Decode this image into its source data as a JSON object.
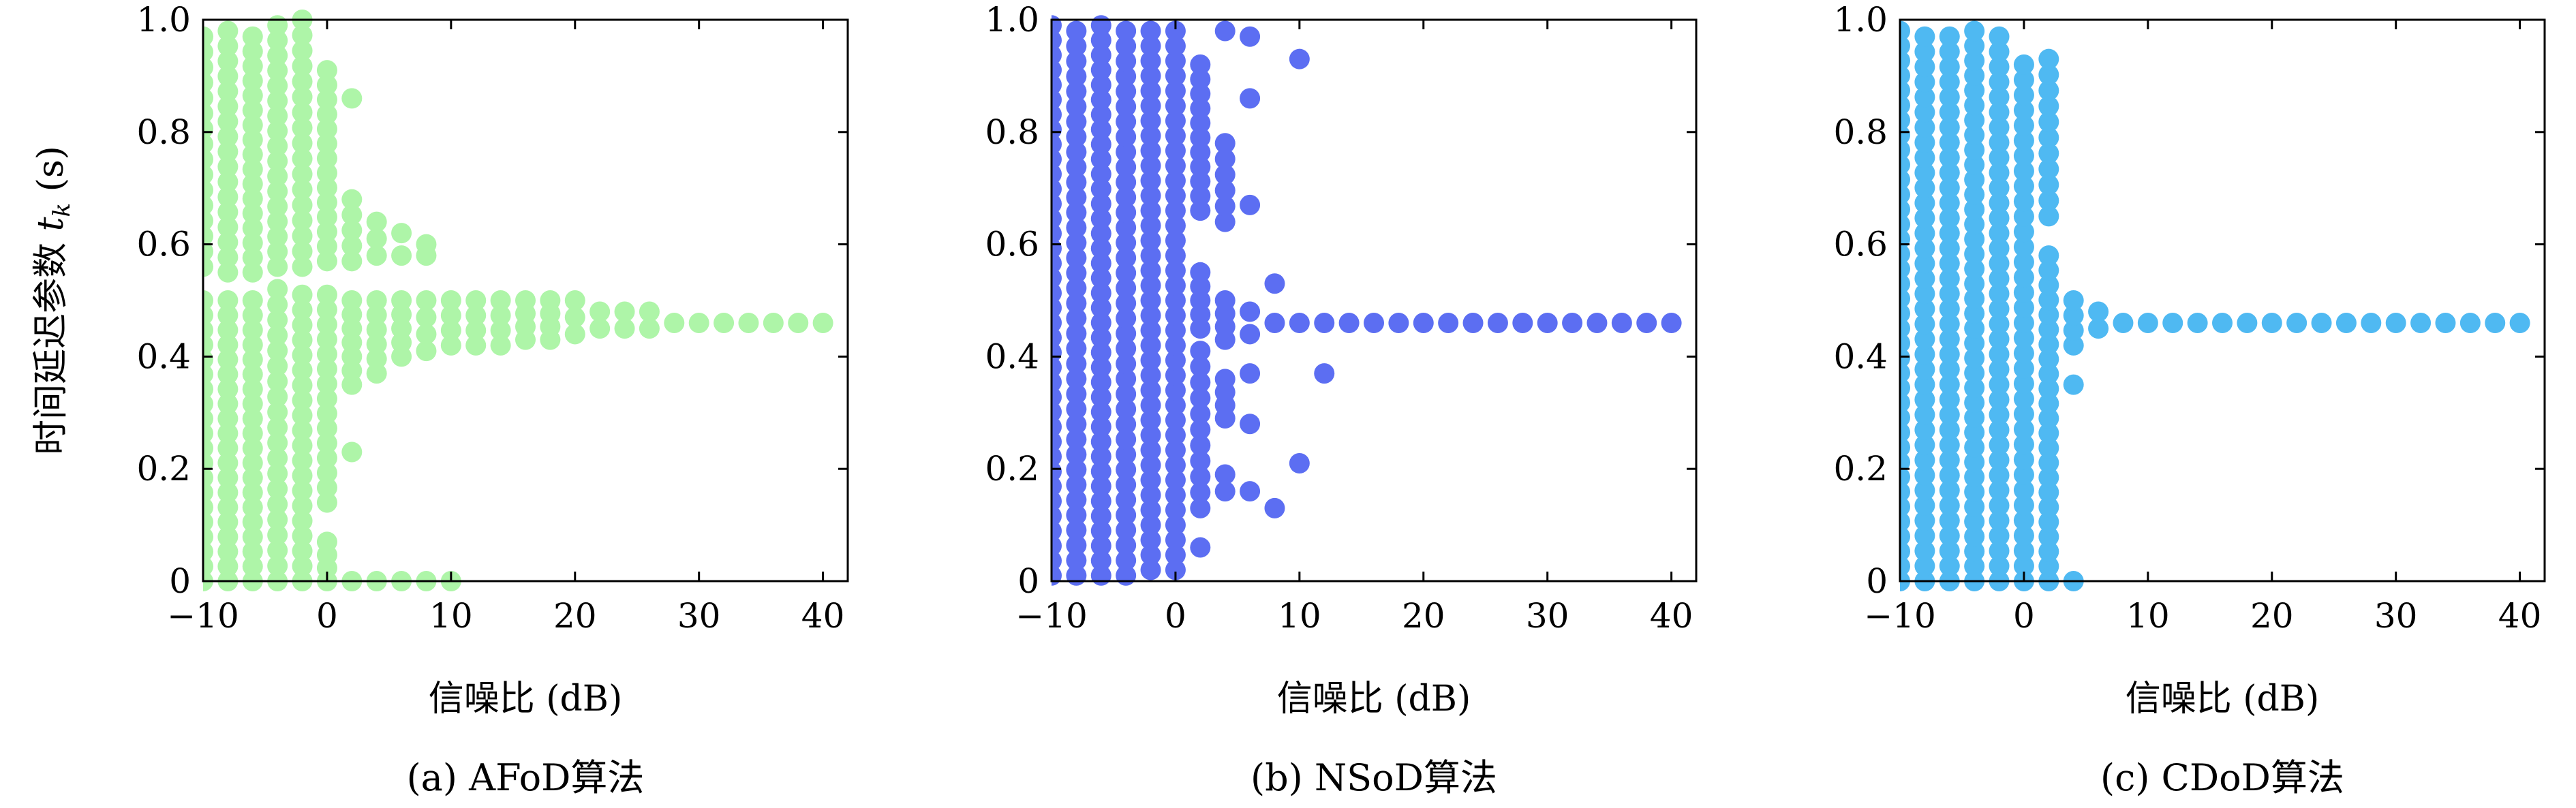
{
  "figure": {
    "y_axis_title": "时间延迟参数 t_k (s)"
  },
  "chart_data": [
    {
      "type": "scatter",
      "caption": "(a) AFoD算法",
      "xlabel": "信噪比 (dB)",
      "ylabel": "时间延迟参数 t_k (s)",
      "xlim": [
        -10,
        42
      ],
      "ylim": [
        0,
        1
      ],
      "xticks": [
        -10,
        0,
        10,
        20,
        30,
        40
      ],
      "xtick_labels": [
        "−10",
        "0",
        "10",
        "20",
        "30",
        "40"
      ],
      "yticks": [
        0,
        0.2,
        0.4,
        0.6,
        0.8,
        1.0
      ],
      "ytick_labels": [
        "0",
        "0.2",
        "0.4",
        "0.6",
        "0.8",
        "1.0"
      ],
      "grid": false,
      "color": "#aef5a8",
      "snr": [
        -10,
        -8,
        -6,
        -4,
        -2,
        0,
        2,
        4,
        6,
        8,
        10,
        12,
        14,
        16,
        18,
        20,
        22,
        24,
        26,
        28,
        30,
        32,
        34,
        36,
        38,
        40
      ],
      "columns": [
        {
          "x": -10,
          "ranges": [
            [
              0.0,
              0.5
            ],
            [
              0.56,
              0.97
            ]
          ]
        },
        {
          "x": -8,
          "ranges": [
            [
              0.0,
              0.5
            ],
            [
              0.55,
              0.98
            ]
          ]
        },
        {
          "x": -6,
          "ranges": [
            [
              0.0,
              0.5
            ],
            [
              0.55,
              0.97
            ]
          ]
        },
        {
          "x": -4,
          "ranges": [
            [
              0.0,
              0.52
            ],
            [
              0.56,
              0.99
            ]
          ]
        },
        {
          "x": -2,
          "ranges": [
            [
              0.0,
              0.51
            ],
            [
              0.56,
              1.0
            ]
          ]
        },
        {
          "x": 0,
          "ranges": [
            [
              0.0,
              0.07
            ],
            [
              0.14,
              0.51
            ],
            [
              0.57,
              0.91
            ]
          ]
        },
        {
          "x": 2,
          "ranges": [
            [
              0.0,
              0.0
            ],
            [
              0.23,
              0.24
            ],
            [
              0.35,
              0.5
            ],
            [
              0.57,
              0.68
            ],
            [
              0.86,
              0.86
            ]
          ]
        },
        {
          "x": 4,
          "ranges": [
            [
              0.0,
              0.0
            ],
            [
              0.37,
              0.5
            ],
            [
              0.58,
              0.64
            ]
          ]
        },
        {
          "x": 6,
          "ranges": [
            [
              0.0,
              0.0
            ],
            [
              0.4,
              0.5
            ],
            [
              0.58,
              0.62
            ]
          ]
        },
        {
          "x": 8,
          "ranges": [
            [
              0.0,
              0.0
            ],
            [
              0.41,
              0.5
            ],
            [
              0.58,
              0.6
            ]
          ]
        },
        {
          "x": 10,
          "ranges": [
            [
              0.0,
              0.0
            ],
            [
              0.42,
              0.5
            ]
          ]
        },
        {
          "x": 12,
          "ranges": [
            [
              0.42,
              0.5
            ]
          ]
        },
        {
          "x": 14,
          "ranges": [
            [
              0.42,
              0.5
            ]
          ]
        },
        {
          "x": 16,
          "ranges": [
            [
              0.43,
              0.5
            ]
          ]
        },
        {
          "x": 18,
          "ranges": [
            [
              0.43,
              0.5
            ]
          ]
        },
        {
          "x": 20,
          "ranges": [
            [
              0.44,
              0.5
            ]
          ]
        },
        {
          "x": 22,
          "ranges": [
            [
              0.45,
              0.48
            ]
          ]
        },
        {
          "x": 24,
          "ranges": [
            [
              0.45,
              0.48
            ]
          ]
        },
        {
          "x": 26,
          "ranges": [
            [
              0.45,
              0.48
            ]
          ]
        },
        {
          "x": 28,
          "ranges": [
            [
              0.46,
              0.47
            ]
          ]
        },
        {
          "x": 30,
          "ranges": [
            [
              0.46,
              0.47
            ]
          ]
        },
        {
          "x": 32,
          "ranges": [
            [
              0.46,
              0.47
            ]
          ]
        },
        {
          "x": 34,
          "ranges": [
            [
              0.46,
              0.47
            ]
          ]
        },
        {
          "x": 36,
          "ranges": [
            [
              0.46,
              0.47
            ]
          ]
        },
        {
          "x": 38,
          "ranges": [
            [
              0.46,
              0.47
            ]
          ]
        },
        {
          "x": 40,
          "ranges": [
            [
              0.46,
              0.47
            ]
          ]
        }
      ]
    },
    {
      "type": "scatter",
      "caption": "(b) NSoD算法",
      "xlabel": "信噪比 (dB)",
      "ylabel": "",
      "xlim": [
        -10,
        42
      ],
      "ylim": [
        0,
        1
      ],
      "xticks": [
        -10,
        0,
        10,
        20,
        30,
        40
      ],
      "xtick_labels": [
        "−10",
        "0",
        "10",
        "20",
        "30",
        "40"
      ],
      "yticks": [
        0,
        0.2,
        0.4,
        0.6,
        0.8,
        1.0
      ],
      "ytick_labels": [
        "0",
        "0.2",
        "0.4",
        "0.6",
        "0.8",
        "1.0"
      ],
      "grid": false,
      "color": "#5c6ef2",
      "snr": [
        -10,
        -8,
        -6,
        -4,
        -2,
        0,
        2,
        4,
        6,
        8,
        10,
        12,
        14,
        16,
        18,
        20,
        22,
        24,
        26,
        28,
        30,
        32,
        34,
        36,
        38,
        40
      ],
      "columns": [
        {
          "x": -10,
          "ranges": [
            [
              0.01,
              0.99
            ]
          ]
        },
        {
          "x": -8,
          "ranges": [
            [
              0.01,
              0.98
            ]
          ]
        },
        {
          "x": -6,
          "ranges": [
            [
              0.01,
              0.99
            ]
          ]
        },
        {
          "x": -4,
          "ranges": [
            [
              0.01,
              0.98
            ]
          ]
        },
        {
          "x": -2,
          "ranges": [
            [
              0.02,
              0.98
            ]
          ]
        },
        {
          "x": 0,
          "ranges": [
            [
              0.02,
              0.98
            ]
          ]
        },
        {
          "x": 2,
          "ranges": [
            [
              0.06,
              0.06
            ],
            [
              0.13,
              0.41
            ],
            [
              0.45,
              0.55
            ],
            [
              0.66,
              0.92
            ]
          ]
        },
        {
          "x": 4,
          "ranges": [
            [
              0.16,
              0.19
            ],
            [
              0.29,
              0.36
            ],
            [
              0.43,
              0.5
            ],
            [
              0.64,
              0.78
            ],
            [
              0.98,
              0.98
            ]
          ]
        },
        {
          "x": 6,
          "ranges": [
            [
              0.16,
              0.16
            ],
            [
              0.28,
              0.28
            ],
            [
              0.37,
              0.37
            ],
            [
              0.44,
              0.48
            ],
            [
              0.67,
              0.67
            ],
            [
              0.86,
              0.86
            ],
            [
              0.97,
              0.97
            ]
          ]
        },
        {
          "x": 8,
          "ranges": [
            [
              0.13,
              0.13
            ],
            [
              0.46,
              0.46
            ],
            [
              0.53,
              0.53
            ]
          ]
        },
        {
          "x": 10,
          "ranges": [
            [
              0.21,
              0.21
            ],
            [
              0.46,
              0.46
            ],
            [
              0.93,
              0.93
            ]
          ]
        },
        {
          "x": 12,
          "ranges": [
            [
              0.37,
              0.37
            ],
            [
              0.46,
              0.46
            ]
          ]
        },
        {
          "x": 14,
          "ranges": [
            [
              0.46,
              0.46
            ]
          ]
        },
        {
          "x": 16,
          "ranges": [
            [
              0.46,
              0.46
            ]
          ]
        },
        {
          "x": 18,
          "ranges": [
            [
              0.46,
              0.46
            ]
          ]
        },
        {
          "x": 20,
          "ranges": [
            [
              0.46,
              0.46
            ]
          ]
        },
        {
          "x": 22,
          "ranges": [
            [
              0.46,
              0.46
            ]
          ]
        },
        {
          "x": 24,
          "ranges": [
            [
              0.46,
              0.46
            ]
          ]
        },
        {
          "x": 26,
          "ranges": [
            [
              0.46,
              0.46
            ]
          ]
        },
        {
          "x": 28,
          "ranges": [
            [
              0.46,
              0.46
            ]
          ]
        },
        {
          "x": 30,
          "ranges": [
            [
              0.46,
              0.46
            ]
          ]
        },
        {
          "x": 32,
          "ranges": [
            [
              0.46,
              0.46
            ]
          ]
        },
        {
          "x": 34,
          "ranges": [
            [
              0.46,
              0.46
            ]
          ]
        },
        {
          "x": 36,
          "ranges": [
            [
              0.46,
              0.46
            ]
          ]
        },
        {
          "x": 38,
          "ranges": [
            [
              0.46,
              0.46
            ]
          ]
        },
        {
          "x": 40,
          "ranges": [
            [
              0.46,
              0.46
            ]
          ]
        }
      ]
    },
    {
      "type": "scatter",
      "caption": "(c) CDoD算法",
      "xlabel": "信噪比 (dB)",
      "ylabel": "",
      "xlim": [
        -10,
        42
      ],
      "ylim": [
        0,
        1
      ],
      "xticks": [
        -10,
        0,
        10,
        20,
        30,
        40
      ],
      "xtick_labels": [
        "−10",
        "0",
        "10",
        "20",
        "30",
        "40"
      ],
      "yticks": [
        0,
        0.2,
        0.4,
        0.6,
        0.8,
        1.0
      ],
      "ytick_labels": [
        "0",
        "0.2",
        "0.4",
        "0.6",
        "0.8",
        "1.0"
      ],
      "grid": false,
      "color": "#4fb9f2",
      "snr": [
        -10,
        -8,
        -6,
        -4,
        -2,
        0,
        2,
        4,
        6,
        8,
        10,
        12,
        14,
        16,
        18,
        20,
        22,
        24,
        26,
        28,
        30,
        32,
        34,
        36,
        38,
        40
      ],
      "columns": [
        {
          "x": -10,
          "ranges": [
            [
              0.0,
              0.98
            ]
          ]
        },
        {
          "x": -8,
          "ranges": [
            [
              0.0,
              0.97
            ]
          ]
        },
        {
          "x": -6,
          "ranges": [
            [
              0.0,
              0.97
            ]
          ]
        },
        {
          "x": -4,
          "ranges": [
            [
              0.0,
              0.98
            ]
          ]
        },
        {
          "x": -2,
          "ranges": [
            [
              0.0,
              0.97
            ]
          ]
        },
        {
          "x": 0,
          "ranges": [
            [
              0.0,
              0.92
            ]
          ]
        },
        {
          "x": 2,
          "ranges": [
            [
              0.0,
              0.58
            ],
            [
              0.65,
              0.93
            ]
          ]
        },
        {
          "x": 4,
          "ranges": [
            [
              0.0,
              0.0
            ],
            [
              0.35,
              0.35
            ],
            [
              0.42,
              0.5
            ]
          ]
        },
        {
          "x": 6,
          "ranges": [
            [
              0.45,
              0.48
            ]
          ]
        },
        {
          "x": 8,
          "ranges": [
            [
              0.46,
              0.47
            ]
          ]
        },
        {
          "x": 10,
          "ranges": [
            [
              0.46,
              0.47
            ]
          ]
        },
        {
          "x": 12,
          "ranges": [
            [
              0.46,
              0.46
            ]
          ]
        },
        {
          "x": 14,
          "ranges": [
            [
              0.46,
              0.46
            ]
          ]
        },
        {
          "x": 16,
          "ranges": [
            [
              0.46,
              0.46
            ]
          ]
        },
        {
          "x": 18,
          "ranges": [
            [
              0.46,
              0.46
            ]
          ]
        },
        {
          "x": 20,
          "ranges": [
            [
              0.46,
              0.46
            ]
          ]
        },
        {
          "x": 22,
          "ranges": [
            [
              0.46,
              0.46
            ]
          ]
        },
        {
          "x": 24,
          "ranges": [
            [
              0.46,
              0.46
            ]
          ]
        },
        {
          "x": 26,
          "ranges": [
            [
              0.46,
              0.46
            ]
          ]
        },
        {
          "x": 28,
          "ranges": [
            [
              0.46,
              0.46
            ]
          ]
        },
        {
          "x": 30,
          "ranges": [
            [
              0.46,
              0.46
            ]
          ]
        },
        {
          "x": 32,
          "ranges": [
            [
              0.46,
              0.46
            ]
          ]
        },
        {
          "x": 34,
          "ranges": [
            [
              0.46,
              0.46
            ]
          ]
        },
        {
          "x": 36,
          "ranges": [
            [
              0.46,
              0.46
            ]
          ]
        },
        {
          "x": 38,
          "ranges": [
            [
              0.46,
              0.46
            ]
          ]
        },
        {
          "x": 40,
          "ranges": [
            [
              0.46,
              0.46
            ]
          ]
        }
      ]
    }
  ]
}
